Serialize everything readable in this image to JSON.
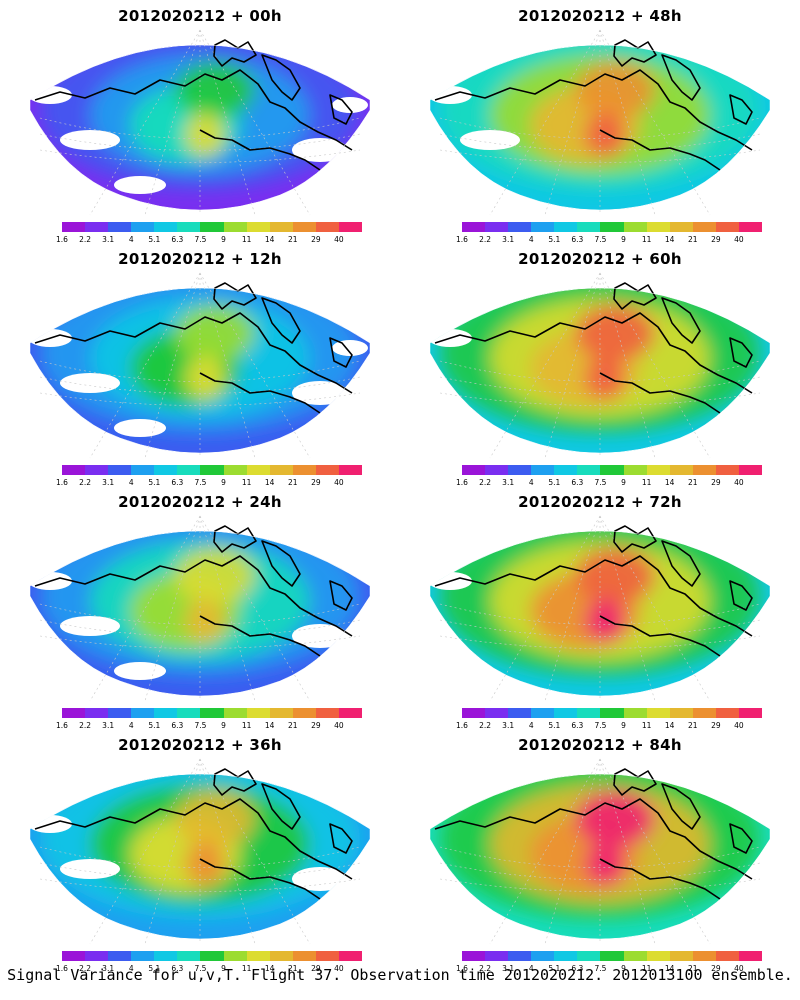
{
  "figure": {
    "caption": "Signal Variance for u,v,T. Flight 37. Observation time 2012020212. 2012013100 ensemble."
  },
  "colorbar": {
    "colors": [
      "#9a14d8",
      "#7a2ef0",
      "#3c5cf0",
      "#1ea0f0",
      "#10c8e4",
      "#18dcbc",
      "#20c838",
      "#9cdc30",
      "#dcdc30",
      "#e4b830",
      "#ec9030",
      "#f06040",
      "#f02070"
    ],
    "tick_labels": [
      "1.6",
      "2.2",
      "3.1",
      "4",
      "5.1",
      "6.3",
      "7.5",
      "9",
      "11",
      "14",
      "21",
      "29",
      "40"
    ],
    "below_min_color": "#ffffff"
  },
  "panels": [
    {
      "title": "2012020212 + 00h",
      "intensity": 0.15
    },
    {
      "title": "2012020212 + 48h",
      "intensity": 0.72
    },
    {
      "title": "2012020212 + 12h",
      "intensity": 0.25
    },
    {
      "title": "2012020212 + 60h",
      "intensity": 0.8
    },
    {
      "title": "2012020212 + 24h",
      "intensity": 0.4
    },
    {
      "title": "2012020212 + 72h",
      "intensity": 0.88
    },
    {
      "title": "2012020212 + 36h",
      "intensity": 0.55
    },
    {
      "title": "2012020212 + 84h",
      "intensity": 0.95
    }
  ]
}
